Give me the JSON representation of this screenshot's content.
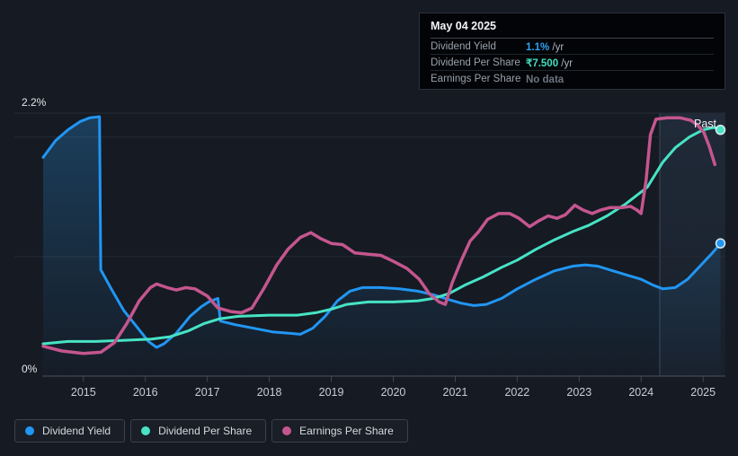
{
  "tooltip": {
    "date": "May 04 2025",
    "rows": [
      {
        "label": "Dividend Yield",
        "value": "1.1%",
        "suffix": " /yr",
        "value_color": "#2ea3f5"
      },
      {
        "label": "Dividend Per Share",
        "value": "₹7.500",
        "suffix": " /yr",
        "value_color": "#43dfc0"
      },
      {
        "label": "Earnings Per Share",
        "value": "No data",
        "suffix": "",
        "value_color": "#6e7580"
      }
    ]
  },
  "legend": [
    {
      "label": "Dividend Yield",
      "color": "#2196f3"
    },
    {
      "label": "Dividend Per Share",
      "color": "#47e3c4"
    },
    {
      "label": "Earnings Per Share",
      "color": "#c4568e"
    }
  ],
  "past_label": "Past",
  "colors": {
    "background": "#151a23",
    "gridline": "#252b35",
    "axis": "#414956",
    "tick_text": "#c9ced5",
    "dividend_yield": "#2196f3",
    "dividend_per_share": "#47e3c4",
    "earnings_per_share": "#c4568e"
  },
  "chart_data": {
    "type": "line",
    "title": "Dividend history (Past)",
    "y_axis": {
      "top_label": "2.2%",
      "bottom_label": "0%",
      "min": 0,
      "max": 2.2,
      "gridlines": [
        2.2,
        2.0,
        1.0
      ]
    },
    "x_axis": {
      "min": 2014.35,
      "max": 2025.36,
      "ticks": [
        2015,
        2016,
        2017,
        2018,
        2019,
        2020,
        2021,
        2022,
        2023,
        2024,
        2025
      ]
    },
    "past_divider_x": 2024.3,
    "scale_note": "Dividend Yield is in % on the labeled axis; Dividend Per Share and Earnings Per Share have no labeled axis, values below are positions on the 0-2.2 visual scale. Latest values from tooltip: Dividend Yield 1.1%/yr, Dividend Per Share ₹7.500/yr, Earnings Per Share: no data.",
    "series": [
      {
        "name": "Dividend Yield",
        "color": "#2196f3",
        "unit": "%",
        "area_fill": true,
        "end_dot": true,
        "points": [
          [
            2014.35,
            1.83
          ],
          [
            2014.55,
            1.97
          ],
          [
            2014.75,
            2.06
          ],
          [
            2014.95,
            2.13
          ],
          [
            2015.1,
            2.16
          ],
          [
            2015.26,
            2.17
          ],
          [
            2015.28,
            0.89
          ],
          [
            2015.45,
            0.73
          ],
          [
            2015.65,
            0.55
          ],
          [
            2015.85,
            0.42
          ],
          [
            2016.05,
            0.29
          ],
          [
            2016.18,
            0.24
          ],
          [
            2016.3,
            0.27
          ],
          [
            2016.5,
            0.36
          ],
          [
            2016.72,
            0.5
          ],
          [
            2016.9,
            0.58
          ],
          [
            2017.02,
            0.62
          ],
          [
            2017.17,
            0.65
          ],
          [
            2017.21,
            0.46
          ],
          [
            2017.45,
            0.43
          ],
          [
            2017.75,
            0.4
          ],
          [
            2018.05,
            0.37
          ],
          [
            2018.3,
            0.36
          ],
          [
            2018.5,
            0.35
          ],
          [
            2018.7,
            0.4
          ],
          [
            2018.9,
            0.5
          ],
          [
            2019.1,
            0.63
          ],
          [
            2019.3,
            0.71
          ],
          [
            2019.5,
            0.74
          ],
          [
            2019.8,
            0.74
          ],
          [
            2020.1,
            0.73
          ],
          [
            2020.4,
            0.71
          ],
          [
            2020.65,
            0.68
          ],
          [
            2020.9,
            0.64
          ],
          [
            2021.1,
            0.61
          ],
          [
            2021.3,
            0.59
          ],
          [
            2021.5,
            0.6
          ],
          [
            2021.75,
            0.65
          ],
          [
            2022.0,
            0.73
          ],
          [
            2022.3,
            0.81
          ],
          [
            2022.6,
            0.88
          ],
          [
            2022.9,
            0.92
          ],
          [
            2023.1,
            0.93
          ],
          [
            2023.3,
            0.92
          ],
          [
            2023.55,
            0.88
          ],
          [
            2023.8,
            0.84
          ],
          [
            2024.0,
            0.81
          ],
          [
            2024.2,
            0.76
          ],
          [
            2024.35,
            0.73
          ],
          [
            2024.55,
            0.74
          ],
          [
            2024.75,
            0.81
          ],
          [
            2024.95,
            0.92
          ],
          [
            2025.15,
            1.03
          ],
          [
            2025.28,
            1.11
          ]
        ]
      },
      {
        "name": "Dividend Per Share",
        "color": "#47e3c4",
        "unit": "visual",
        "area_fill": false,
        "end_dot": true,
        "points": [
          [
            2014.35,
            0.27
          ],
          [
            2014.75,
            0.29
          ],
          [
            2015.2,
            0.29
          ],
          [
            2015.7,
            0.3
          ],
          [
            2016.1,
            0.31
          ],
          [
            2016.4,
            0.33
          ],
          [
            2016.7,
            0.38
          ],
          [
            2016.95,
            0.44
          ],
          [
            2017.2,
            0.48
          ],
          [
            2017.5,
            0.5
          ],
          [
            2018.0,
            0.51
          ],
          [
            2018.45,
            0.51
          ],
          [
            2018.75,
            0.53
          ],
          [
            2019.0,
            0.56
          ],
          [
            2019.25,
            0.6
          ],
          [
            2019.6,
            0.62
          ],
          [
            2020.0,
            0.62
          ],
          [
            2020.4,
            0.63
          ],
          [
            2020.65,
            0.65
          ],
          [
            2020.9,
            0.69
          ],
          [
            2021.15,
            0.76
          ],
          [
            2021.45,
            0.83
          ],
          [
            2021.75,
            0.91
          ],
          [
            2022.0,
            0.97
          ],
          [
            2022.3,
            1.06
          ],
          [
            2022.6,
            1.14
          ],
          [
            2022.9,
            1.21
          ],
          [
            2023.15,
            1.26
          ],
          [
            2023.45,
            1.34
          ],
          [
            2023.75,
            1.44
          ],
          [
            2024.1,
            1.58
          ],
          [
            2024.35,
            1.79
          ],
          [
            2024.55,
            1.91
          ],
          [
            2024.78,
            2.0
          ],
          [
            2025.0,
            2.06
          ],
          [
            2025.17,
            2.08
          ],
          [
            2025.28,
            2.06
          ]
        ]
      },
      {
        "name": "Earnings Per Share",
        "color": "#c4568e",
        "unit": "visual",
        "area_fill": false,
        "end_dot": false,
        "points": [
          [
            2014.35,
            0.25
          ],
          [
            2014.65,
            0.21
          ],
          [
            2015.0,
            0.19
          ],
          [
            2015.28,
            0.2
          ],
          [
            2015.5,
            0.28
          ],
          [
            2015.7,
            0.44
          ],
          [
            2015.9,
            0.63
          ],
          [
            2016.08,
            0.74
          ],
          [
            2016.18,
            0.77
          ],
          [
            2016.35,
            0.74
          ],
          [
            2016.5,
            0.72
          ],
          [
            2016.65,
            0.74
          ],
          [
            2016.8,
            0.73
          ],
          [
            2017.0,
            0.67
          ],
          [
            2017.17,
            0.57
          ],
          [
            2017.38,
            0.54
          ],
          [
            2017.55,
            0.53
          ],
          [
            2017.72,
            0.57
          ],
          [
            2017.92,
            0.74
          ],
          [
            2018.12,
            0.93
          ],
          [
            2018.3,
            1.06
          ],
          [
            2018.5,
            1.16
          ],
          [
            2018.67,
            1.2
          ],
          [
            2018.83,
            1.15
          ],
          [
            2019.0,
            1.11
          ],
          [
            2019.18,
            1.1
          ],
          [
            2019.38,
            1.03
          ],
          [
            2019.6,
            1.02
          ],
          [
            2019.8,
            1.01
          ],
          [
            2020.0,
            0.96
          ],
          [
            2020.22,
            0.9
          ],
          [
            2020.42,
            0.81
          ],
          [
            2020.58,
            0.69
          ],
          [
            2020.74,
            0.62
          ],
          [
            2020.84,
            0.6
          ],
          [
            2020.95,
            0.78
          ],
          [
            2021.1,
            0.97
          ],
          [
            2021.24,
            1.13
          ],
          [
            2021.38,
            1.21
          ],
          [
            2021.52,
            1.31
          ],
          [
            2021.7,
            1.36
          ],
          [
            2021.88,
            1.36
          ],
          [
            2022.03,
            1.32
          ],
          [
            2022.2,
            1.25
          ],
          [
            2022.35,
            1.3
          ],
          [
            2022.5,
            1.34
          ],
          [
            2022.64,
            1.32
          ],
          [
            2022.78,
            1.35
          ],
          [
            2022.93,
            1.43
          ],
          [
            2023.06,
            1.39
          ],
          [
            2023.21,
            1.36
          ],
          [
            2023.35,
            1.39
          ],
          [
            2023.5,
            1.41
          ],
          [
            2023.7,
            1.41
          ],
          [
            2023.83,
            1.42
          ],
          [
            2023.93,
            1.39
          ],
          [
            2024.0,
            1.36
          ],
          [
            2024.08,
            1.64
          ],
          [
            2024.15,
            2.02
          ],
          [
            2024.24,
            2.15
          ],
          [
            2024.42,
            2.16
          ],
          [
            2024.63,
            2.16
          ],
          [
            2024.8,
            2.14
          ],
          [
            2024.91,
            2.1
          ],
          [
            2025.01,
            2.04
          ],
          [
            2025.1,
            1.92
          ],
          [
            2025.19,
            1.77
          ]
        ]
      }
    ]
  }
}
